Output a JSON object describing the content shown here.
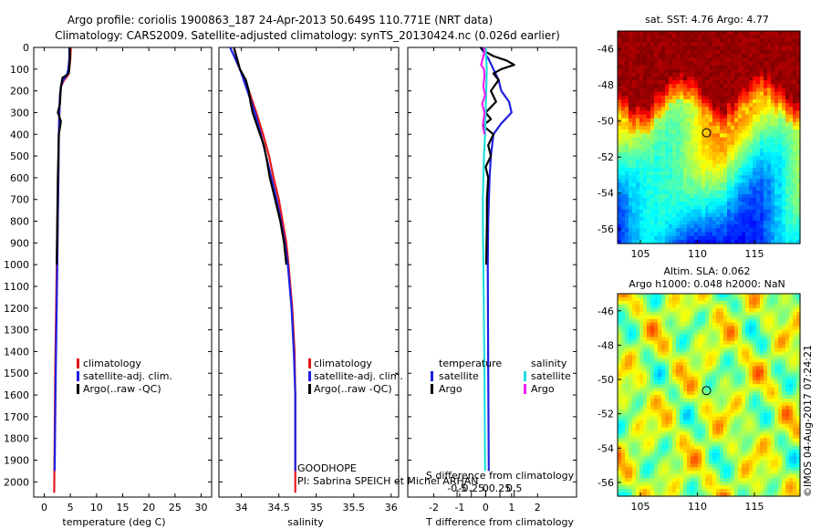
{
  "title": {
    "line1": "Argo profile: coriolis 1900863_187 24-Apr-2013 50.649S 110.771E (NRT data)",
    "line2": "Climatology: CARS2009. Satellite-adjusted climatology: synTS_20130424.nc (0.026d earlier)"
  },
  "depth_ticks": [
    0,
    100,
    200,
    300,
    400,
    500,
    600,
    700,
    800,
    900,
    1000,
    1100,
    1200,
    1300,
    1400,
    1500,
    1600,
    1700,
    1800,
    1900,
    2000
  ],
  "colors": {
    "climatology": "#e41a1c",
    "satellite": "#1f1fe0",
    "argo": "#000000",
    "cyan": "#22dddd",
    "magenta": "#ee22ee"
  },
  "chart_data": [
    {
      "type": "line",
      "name": "temperature",
      "xlabel": "temperature (deg C)",
      "xlim": [
        -2,
        32
      ],
      "ylim": [
        2070,
        0
      ],
      "xticks": [
        0,
        5,
        10,
        15,
        20,
        25,
        30
      ],
      "legend": [
        "climatology",
        "satellite-adj. clim.",
        "Argo(..raw -QC)"
      ],
      "series": [
        {
          "name": "climatology",
          "depth": [
            0,
            50,
            100,
            130,
            150,
            180,
            220,
            300,
            400,
            600,
            800,
            1000,
            1500,
            2050
          ],
          "values": [
            5.1,
            5.0,
            4.8,
            4.5,
            3.8,
            3.2,
            3.0,
            2.9,
            2.8,
            2.7,
            2.5,
            2.4,
            2.1,
            1.9
          ]
        },
        {
          "name": "satellite-adj. clim.",
          "depth": [
            0,
            50,
            100,
            130,
            150,
            180,
            220,
            300,
            400,
            600,
            800,
            1000,
            1500,
            1950
          ],
          "values": [
            4.8,
            4.8,
            4.6,
            4.3,
            3.6,
            3.2,
            3.0,
            2.9,
            2.8,
            2.7,
            2.6,
            2.5,
            2.2,
            2.0
          ]
        },
        {
          "name": "Argo(..raw -QC)",
          "depth": [
            0,
            50,
            90,
            120,
            140,
            180,
            260,
            300,
            340,
            400,
            600,
            800,
            1000
          ],
          "values": [
            4.9,
            4.9,
            4.8,
            4.7,
            3.5,
            3.2,
            3.0,
            2.6,
            3.2,
            2.8,
            2.6,
            2.5,
            2.4
          ]
        }
      ]
    },
    {
      "type": "line",
      "name": "salinity",
      "xlabel": "salinity",
      "xlim": [
        33.7,
        36.1
      ],
      "ylim": [
        2070,
        0
      ],
      "xticks": [
        34,
        34.5,
        35,
        35.5,
        36
      ],
      "xticklabels": [
        "34",
        "34.5",
        "35",
        "35.5",
        "36"
      ],
      "legend": [
        "climatology",
        "satellite-adj. clim.",
        "Argo(..raw -QC)"
      ],
      "annotation": [
        "GOODHOPE",
        "PI: Sabrina SPEICH et Michel ARHAN"
      ],
      "series": [
        {
          "name": "climatology",
          "depth": [
            0,
            100,
            200,
            300,
            400,
            500,
            600,
            700,
            800,
            900,
            1000,
            1200,
            1400,
            1600,
            2050
          ],
          "values": [
            33.9,
            33.98,
            34.1,
            34.2,
            34.29,
            34.37,
            34.43,
            34.5,
            34.55,
            34.6,
            34.63,
            34.68,
            34.71,
            34.72,
            34.72
          ]
        },
        {
          "name": "satellite-adj. clim.",
          "depth": [
            0,
            100,
            200,
            300,
            400,
            500,
            600,
            700,
            800,
            900,
            1000,
            1200,
            1400,
            1600,
            1950
          ],
          "values": [
            33.85,
            33.98,
            34.08,
            34.18,
            34.26,
            34.33,
            34.4,
            34.47,
            34.53,
            34.58,
            34.62,
            34.67,
            34.7,
            34.72,
            34.72
          ]
        },
        {
          "name": "Argo(..raw -QC)",
          "depth": [
            0,
            50,
            100,
            150,
            200,
            250,
            300,
            350,
            400,
            450,
            500,
            600,
            700,
            800,
            900,
            1000
          ],
          "values": [
            33.9,
            33.94,
            33.98,
            34.06,
            34.1,
            34.12,
            34.15,
            34.2,
            34.25,
            34.3,
            34.33,
            34.38,
            34.45,
            34.52,
            34.57,
            34.6
          ]
        }
      ]
    },
    {
      "type": "line",
      "name": "difference",
      "xlabel": "T difference from climatology",
      "xlabel_top": "S difference from climatology",
      "xlim": [
        -3,
        3.5
      ],
      "ylim": [
        2070,
        0
      ],
      "xticks": [
        -2,
        -1,
        0,
        1,
        2
      ],
      "s_ticks": [
        -0.5,
        -0.25,
        0,
        0.25,
        0.5
      ],
      "s_ticklabels": [
        "-0.5",
        "-0.25",
        "0",
        "0.25",
        "0.5"
      ],
      "legend_headers": [
        "temperature",
        "salinity"
      ],
      "legend": [
        "satellite",
        "Argo",
        "satellite",
        "Argo"
      ],
      "series": [
        {
          "name": "T satellite",
          "depth": [
            0,
            50,
            100,
            150,
            200,
            250,
            300,
            350,
            400,
            500,
            600,
            800,
            1000,
            1500,
            1950
          ],
          "values": [
            -0.2,
            0.1,
            0.3,
            0.5,
            0.6,
            0.9,
            1.0,
            0.6,
            0.3,
            0.2,
            0.15,
            0.1,
            0.08,
            0.1,
            0.12
          ]
        },
        {
          "name": "T Argo",
          "depth": [
            0,
            20,
            40,
            60,
            80,
            100,
            120,
            150,
            200,
            250,
            300,
            330,
            360,
            400,
            450,
            500,
            550,
            600,
            700,
            800,
            1000
          ],
          "values": [
            -0.2,
            0.0,
            0.3,
            0.8,
            1.1,
            0.6,
            0.3,
            0.5,
            0.2,
            0.4,
            0.0,
            0.2,
            -0.1,
            0.3,
            0.1,
            0.2,
            0.0,
            0.1,
            0.05,
            0.05,
            0.02
          ]
        },
        {
          "name": "S satellite",
          "depth": [
            0,
            100,
            200,
            300,
            400,
            500,
            600,
            700,
            800,
            1000,
            1500,
            1950
          ],
          "values": [
            0.0,
            0.02,
            0.01,
            0.0,
            -0.01,
            -0.03,
            -0.04,
            -0.05,
            -0.05,
            -0.04,
            -0.02,
            -0.01
          ]
        },
        {
          "name": "S Argo",
          "depth": [
            0,
            20,
            50,
            80,
            100,
            130,
            180,
            220,
            260,
            300,
            360,
            400
          ],
          "values": [
            -0.03,
            -0.02,
            -0.05,
            -0.08,
            -0.03,
            -0.02,
            -0.04,
            -0.01,
            -0.06,
            -0.02,
            -0.05,
            -0.02
          ]
        }
      ]
    },
    {
      "type": "heatmap",
      "name": "sst-map",
      "title": "sat. SST: 4.76 Argo: 4.77",
      "xlim": [
        103,
        119
      ],
      "ylim": [
        -56.8,
        -45
      ],
      "xticks": [
        105,
        110,
        115
      ],
      "yticks": [
        -46,
        -48,
        -50,
        -52,
        -54,
        -56
      ],
      "marker": {
        "lon": 110.8,
        "lat": -50.65
      }
    },
    {
      "type": "heatmap",
      "name": "sla-map",
      "title": "Altim. SLA: 0.062",
      "subtitle": "Argo h1000: 0.048 h2000: NaN",
      "xlim": [
        103,
        119
      ],
      "ylim": [
        -56.8,
        -45
      ],
      "xticks": [
        105,
        110,
        115
      ],
      "yticks": [
        -46,
        -48,
        -50,
        -52,
        -54,
        -56
      ],
      "marker": {
        "lon": 110.8,
        "lat": -50.65
      }
    }
  ],
  "footer": "©IMOS 04-Aug-2017 07:24:21"
}
